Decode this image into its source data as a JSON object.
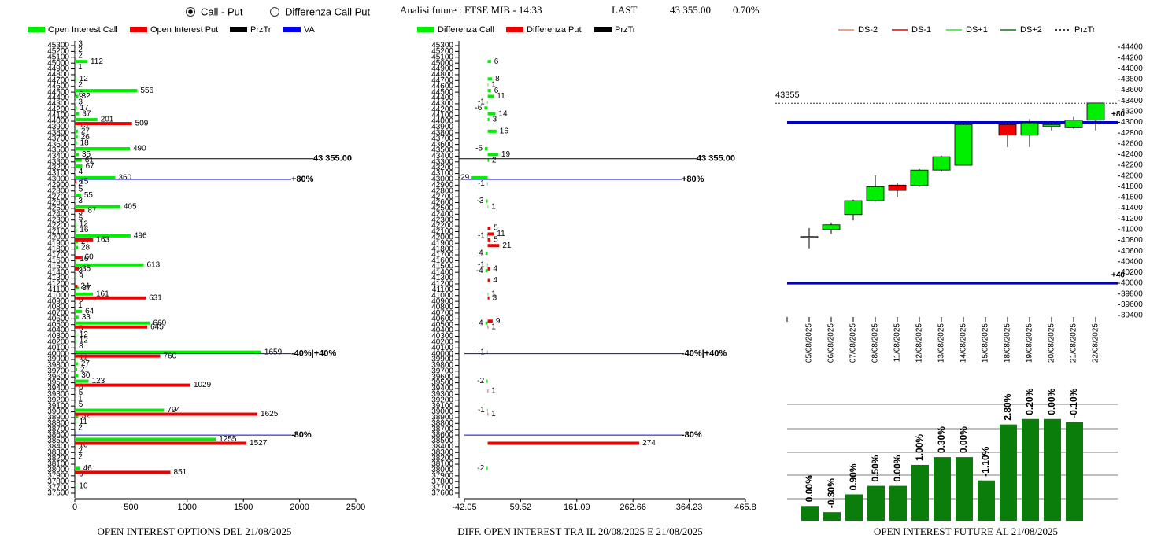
{
  "controls": {
    "radio": [
      {
        "label": "Call - Put",
        "checked": true
      },
      {
        "label": "Differenza Call Put",
        "checked": false
      }
    ]
  },
  "header": {
    "title": "Analisi future : FTSE MIB - 14:33",
    "last_label": "LAST",
    "last_value": "43 355.00",
    "change": "0.70%"
  },
  "chart_data": [
    {
      "type": "hbar",
      "title": "OPEN INTEREST OPTIONS DEL 21/08/2025",
      "categories": [
        45300,
        45200,
        45100,
        45000,
        44900,
        44800,
        44700,
        44600,
        44500,
        44400,
        44300,
        44200,
        44100,
        44000,
        43900,
        43800,
        43700,
        43600,
        43500,
        43400,
        43300,
        43200,
        43100,
        43000,
        42900,
        42800,
        42700,
        42600,
        42500,
        42400,
        42300,
        42200,
        42100,
        42000,
        41900,
        41800,
        41700,
        41600,
        41500,
        41400,
        41300,
        41200,
        41100,
        41000,
        40900,
        40800,
        40700,
        40600,
        40500,
        40400,
        40300,
        40200,
        40100,
        40000,
        39900,
        39800,
        39700,
        39600,
        39500,
        39400,
        39300,
        39200,
        39100,
        39000,
        38900,
        38800,
        38700,
        38600,
        38500,
        38400,
        38300,
        38200,
        38100,
        38000,
        37900,
        37800,
        37700,
        37600
      ],
      "series": [
        {
          "name": "Open Interest Call",
          "color": "#00ee00",
          "values": [
            3,
            2,
            2,
            112,
            1,
            null,
            12,
            2,
            556,
            32,
            3,
            17,
            37,
            201,
            13,
            27,
            26,
            18,
            490,
            35,
            61,
            67,
            4,
            360,
            2,
            5,
            55,
            3,
            405,
            3,
            5,
            12,
            16,
            496,
            27,
            28,
            null,
            16,
            613,
            3,
            9,
            null,
            37,
            161,
            6,
            1,
            64,
            33,
            669,
            5,
            12,
            12,
            8,
            1659,
            12,
            27,
            21,
            30,
            123,
            8,
            5,
            1,
            5,
            794,
            32,
            11,
            2,
            null,
            1255,
            10,
            2,
            2,
            null,
            46,
            9,
            null,
            10,
            null
          ]
        },
        {
          "name": "Open Interest Put",
          "color": "#ee0000",
          "values": [
            null,
            null,
            null,
            null,
            null,
            null,
            null,
            null,
            6,
            null,
            null,
            null,
            null,
            509,
            null,
            null,
            null,
            null,
            null,
            null,
            null,
            null,
            null,
            15,
            null,
            null,
            null,
            null,
            87,
            null,
            null,
            null,
            null,
            163,
            null,
            null,
            60,
            null,
            35,
            null,
            null,
            24,
            null,
            631,
            null,
            null,
            null,
            null,
            645,
            null,
            null,
            null,
            null,
            760,
            null,
            null,
            null,
            null,
            1029,
            null,
            null,
            null,
            null,
            1625,
            null,
            null,
            null,
            null,
            1527,
            null,
            null,
            null,
            null,
            851,
            null,
            null,
            null,
            null
          ]
        }
      ],
      "legend_extra": [
        {
          "name": "PrzTr",
          "color": "#000000"
        },
        {
          "name": "VA",
          "color": "#0000ee"
        }
      ],
      "price_line": {
        "value": 43355,
        "label": "43 355.00",
        "color": "#000000"
      },
      "va_color": "#0000ee",
      "va_lines": [
        {
          "value": 43000,
          "label": "+80%"
        },
        {
          "value": 40000,
          "label": "-40%|+40%"
        },
        {
          "value": 38600,
          "label": "-80%"
        }
      ],
      "xlim": [
        0,
        2500
      ],
      "xticks": [
        0,
        500,
        1000,
        1500,
        2000,
        2500
      ]
    },
    {
      "type": "hbar",
      "title": "DIFF. OPEN INTEREST TRA IL 20/08/2025 E 21/08/2025",
      "categories": [
        45300,
        45200,
        45100,
        45000,
        44900,
        44800,
        44700,
        44600,
        44500,
        44400,
        44300,
        44200,
        44100,
        44000,
        43900,
        43800,
        43700,
        43600,
        43500,
        43400,
        43300,
        43200,
        43100,
        43000,
        42900,
        42800,
        42700,
        42600,
        42500,
        42400,
        42300,
        42200,
        42100,
        42000,
        41900,
        41800,
        41700,
        41600,
        41500,
        41400,
        41300,
        41200,
        41100,
        41000,
        40900,
        40800,
        40700,
        40600,
        40500,
        40400,
        40300,
        40200,
        40100,
        40000,
        39900,
        39800,
        39700,
        39600,
        39500,
        39400,
        39300,
        39200,
        39100,
        39000,
        38900,
        38800,
        38700,
        38600,
        38500,
        38400,
        38300,
        38200,
        38100,
        38000,
        37900,
        37800,
        37700,
        37600
      ],
      "series": [
        {
          "name": "Differenza Call",
          "color": "#00ee00",
          "values": [
            null,
            null,
            null,
            6,
            null,
            null,
            8,
            1,
            6,
            11,
            -1,
            -6,
            14,
            3,
            null,
            16,
            null,
            null,
            -5,
            19,
            2,
            null,
            null,
            -29,
            -1,
            null,
            null,
            -3,
            1,
            null,
            null,
            null,
            null,
            -1,
            null,
            null,
            -4,
            null,
            -1,
            -4,
            null,
            null,
            null,
            1,
            null,
            null,
            null,
            null,
            -4,
            null,
            null,
            null,
            null,
            -1,
            null,
            null,
            null,
            null,
            -2,
            null,
            null,
            null,
            null,
            -1,
            null,
            null,
            null,
            null,
            null,
            null,
            null,
            null,
            null,
            -2,
            null,
            null,
            null,
            null
          ]
        },
        {
          "name": "Differenza Put",
          "color": "#ee0000",
          "values": [
            null,
            null,
            null,
            null,
            null,
            null,
            null,
            null,
            null,
            null,
            null,
            null,
            null,
            null,
            null,
            null,
            null,
            null,
            null,
            null,
            null,
            null,
            null,
            null,
            null,
            null,
            null,
            null,
            null,
            null,
            null,
            5,
            11,
            5,
            21,
            null,
            null,
            null,
            4,
            null,
            4,
            null,
            null,
            3,
            null,
            null,
            null,
            9,
            1,
            null,
            null,
            null,
            null,
            null,
            null,
            null,
            null,
            null,
            null,
            1,
            null,
            null,
            null,
            1,
            null,
            null,
            null,
            null,
            274,
            null,
            null,
            null,
            null,
            null,
            null,
            null,
            null,
            null
          ]
        }
      ],
      "legend_extra": [
        {
          "name": "PrzTr",
          "color": "#000000"
        }
      ],
      "price_line": {
        "value": 43355,
        "label": "43 355.00",
        "color": "#000000"
      },
      "va_color": "#0000ee",
      "va_lines": [
        {
          "value": 43000,
          "label": "+80%"
        },
        {
          "value": 40000,
          "label": "-40%|+40%"
        },
        {
          "value": 38600,
          "label": "-80%"
        }
      ],
      "xlim": [
        -42.05,
        465.8
      ],
      "xticks": [
        -42.05,
        59.52,
        161.09,
        262.66,
        364.23,
        465.8
      ]
    },
    {
      "type": "candlestick",
      "x": [
        "05/08/2025",
        "06/08/2025",
        "07/08/2025",
        "08/08/2025",
        "11/08/2025",
        "12/08/2025",
        "13/08/2025",
        "14/08/2025",
        "15/08/2025",
        "18/08/2025",
        "19/08/2025",
        "20/08/2025",
        "21/08/2025",
        "22/08/2025"
      ],
      "open": [
        40850,
        41000,
        41280,
        41540,
        41830,
        41820,
        42110,
        42200,
        null,
        42960,
        42760,
        42920,
        42900,
        43040
      ],
      "high": [
        41030,
        41130,
        41560,
        42010,
        41870,
        42130,
        42380,
        42990,
        null,
        43000,
        43060,
        43000,
        43100,
        43360
      ],
      "low": [
        40650,
        40920,
        41170,
        41520,
        41600,
        41800,
        42080,
        42200,
        null,
        42540,
        42540,
        42850,
        42880,
        42850
      ],
      "close": [
        40870,
        41090,
        41540,
        41800,
        41730,
        42110,
        42360,
        42960,
        null,
        42760,
        42990,
        42960,
        43040,
        43360
      ],
      "up_color": "#00ee00",
      "down_color": "#ee0000",
      "legend": [
        {
          "name": "DS-2",
          "color": "#f08060"
        },
        {
          "name": "DS-1",
          "color": "#ee0000"
        },
        {
          "name": "DS+1",
          "color": "#22ee22"
        },
        {
          "name": "DS+2",
          "color": "#117711"
        },
        {
          "name": "PrzTr",
          "color": "#000000",
          "dashed": true
        }
      ],
      "price_line": {
        "value": 43355
      },
      "va_color": "#0000cc",
      "va_lines": [
        {
          "value": 43000,
          "label": "+80"
        },
        {
          "value": 40000,
          "label": "+40"
        }
      ],
      "ylim": [
        39400,
        44400
      ],
      "yticks": [
        39400,
        39600,
        39800,
        40000,
        40200,
        40400,
        40600,
        40800,
        41000,
        41200,
        41400,
        41600,
        41800,
        42000,
        42200,
        42400,
        42600,
        42800,
        43000,
        43200,
        43400,
        43600,
        43800,
        44000,
        44200,
        44400
      ]
    },
    {
      "type": "bar",
      "title": "OPEN INTEREST FUTURE AL 21/08/2025",
      "values": [
        19,
        11,
        34,
        45,
        45,
        72,
        82,
        82,
        52,
        124,
        131,
        131,
        127
      ],
      "labels": [
        "0.00%",
        "-0.30%",
        "0.90%",
        "0.50%",
        "0.00%",
        "1.00%",
        "0.30%",
        "0.00%",
        "-1.10%",
        "2.80%",
        "0.20%",
        "0.00%",
        "-0.10%"
      ],
      "color": "#0a7d0a",
      "ylim": [
        0,
        150
      ]
    }
  ]
}
